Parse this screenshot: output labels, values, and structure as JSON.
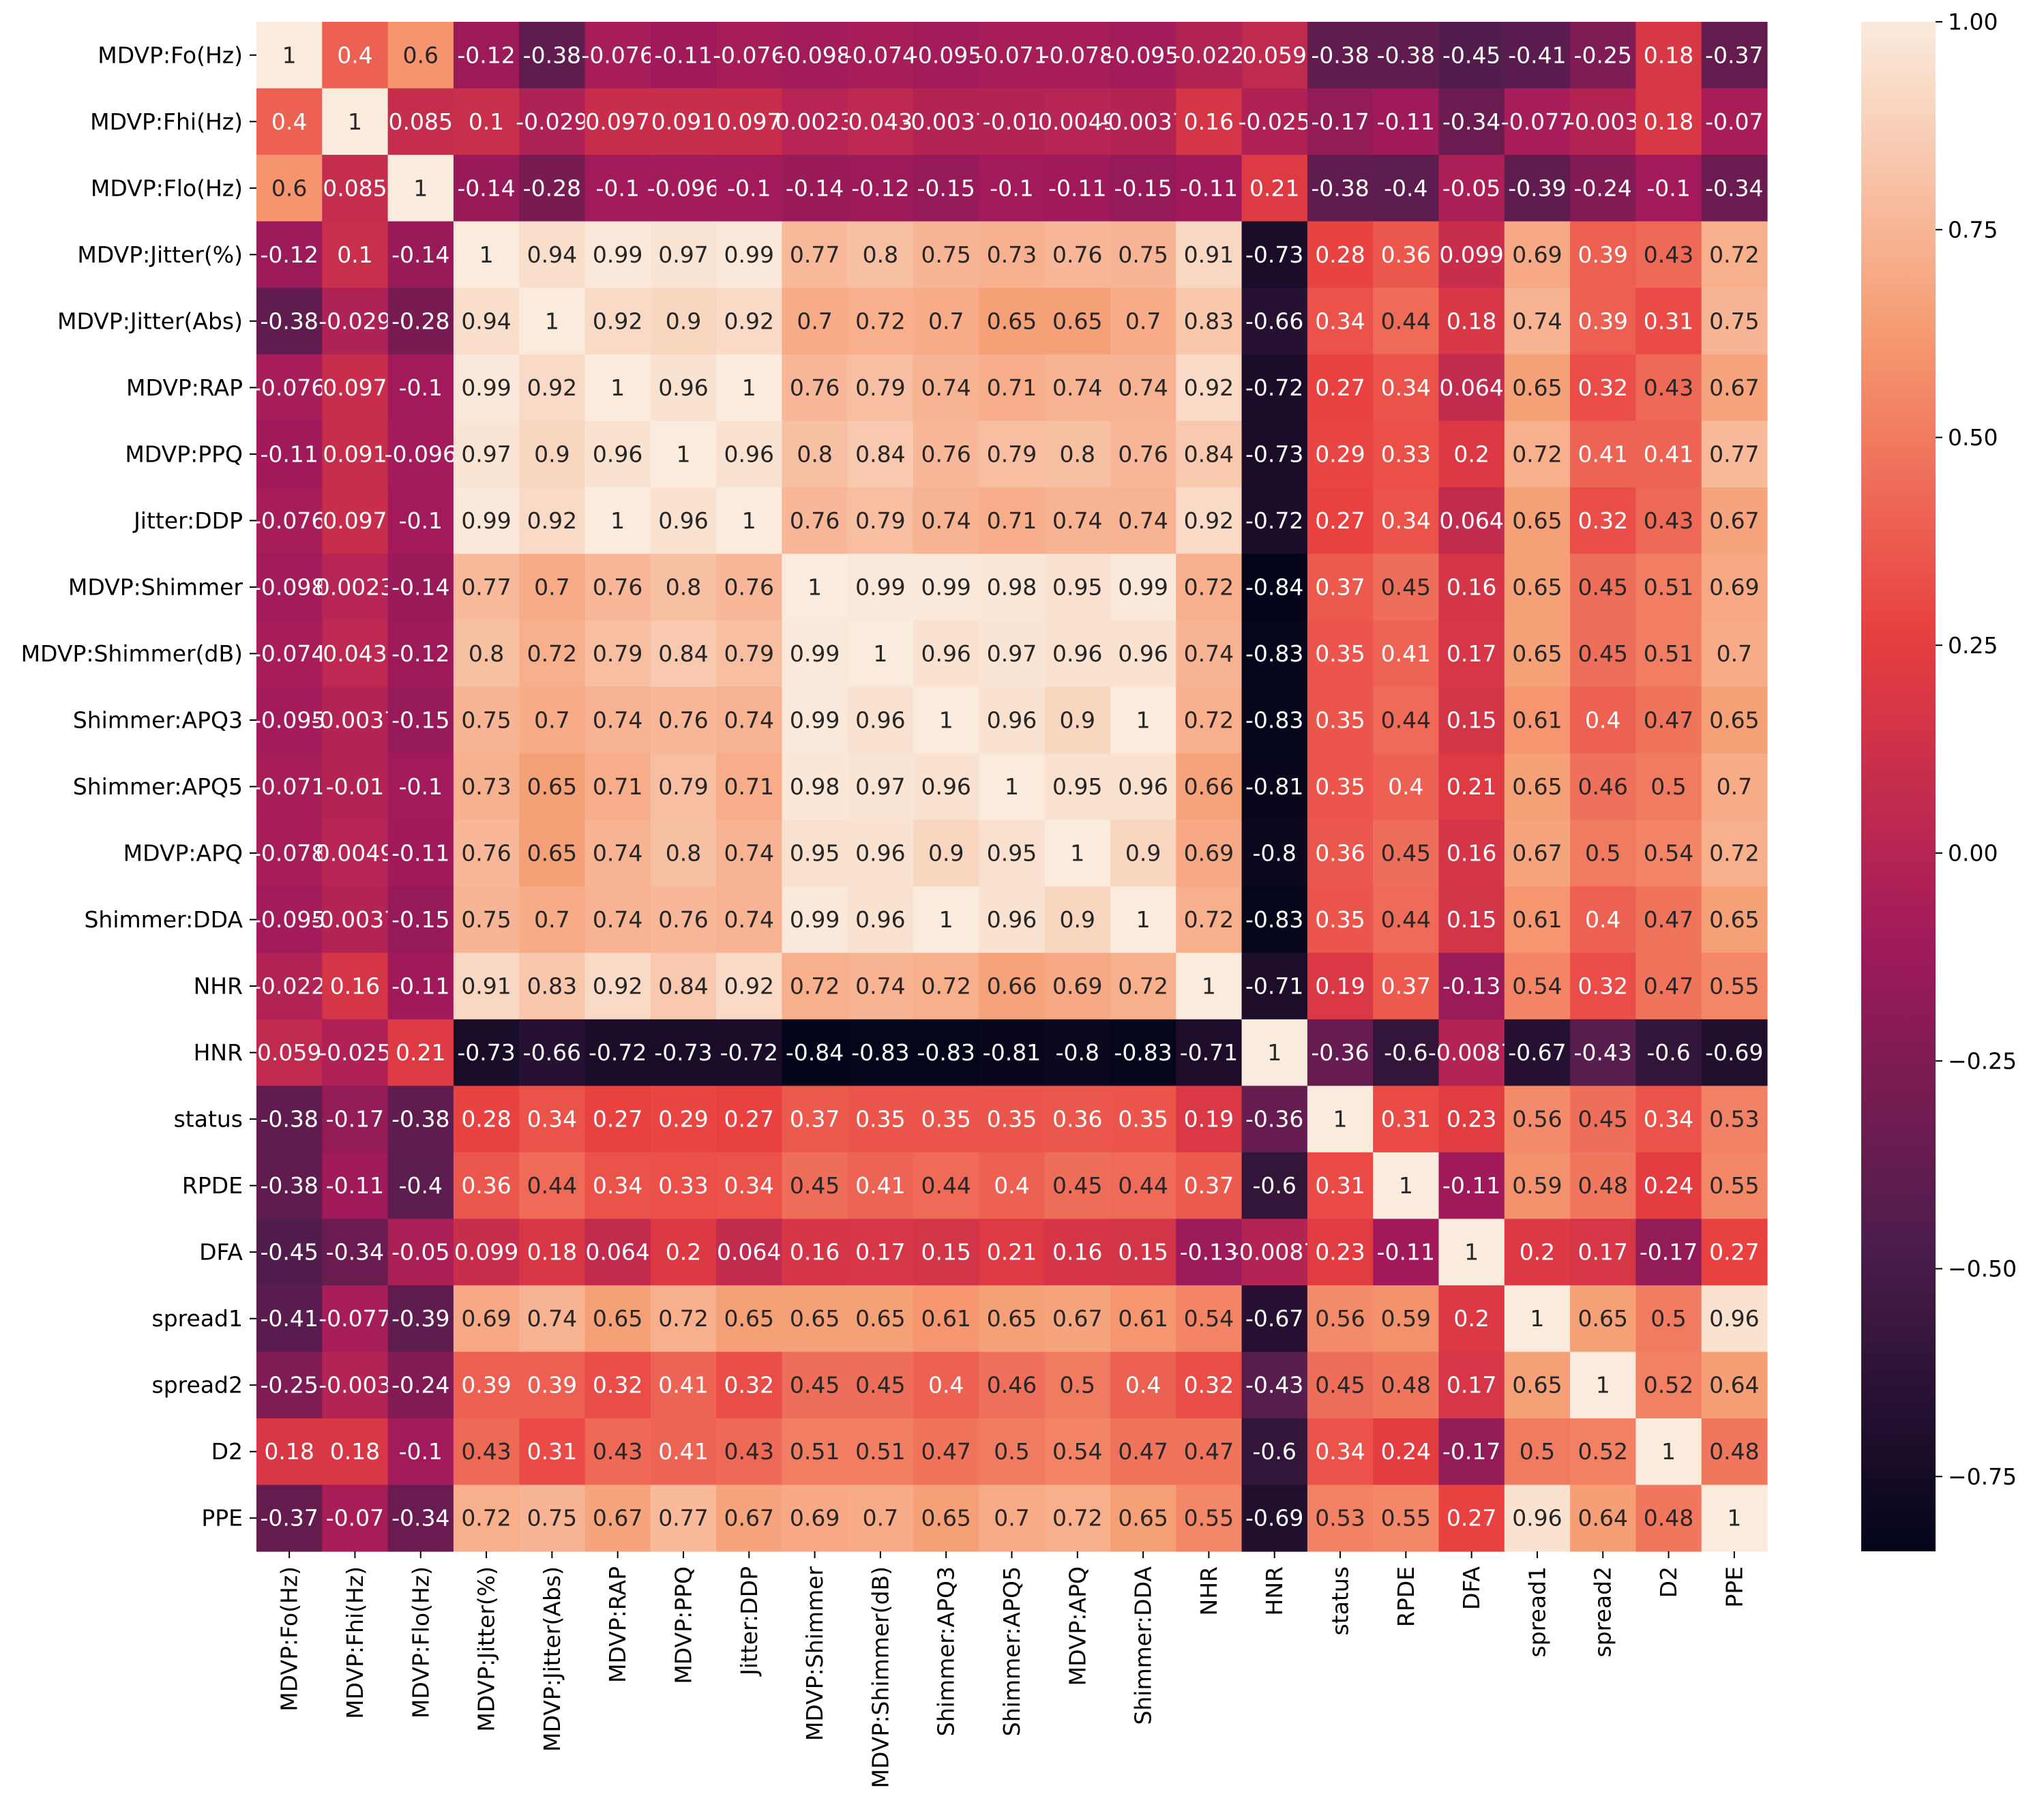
{
  "chart_data": {
    "type": "heatmap",
    "title": "",
    "xlabel": "",
    "ylabel": "",
    "labels": [
      "MDVP:Fo(Hz)",
      "MDVP:Fhi(Hz)",
      "MDVP:Flo(Hz)",
      "MDVP:Jitter(%)",
      "MDVP:Jitter(Abs)",
      "MDVP:RAP",
      "MDVP:PPQ",
      "Jitter:DDP",
      "MDVP:Shimmer",
      "MDVP:Shimmer(dB)",
      "Shimmer:APQ3",
      "Shimmer:APQ5",
      "MDVP:APQ",
      "Shimmer:DDA",
      "NHR",
      "HNR",
      "status",
      "RPDE",
      "DFA",
      "spread1",
      "spread2",
      "D2",
      "PPE"
    ],
    "matrix": [
      [
        "1",
        "0.4",
        "0.6",
        "-0.12",
        "-0.38",
        "-0.076",
        "-0.11",
        "-0.076",
        "-0.098",
        "-0.074",
        "-0.095",
        "-0.071",
        "-0.078",
        "-0.095",
        "-0.022",
        "0.059",
        "-0.38",
        "-0.38",
        "-0.45",
        "-0.41",
        "-0.25",
        "0.18",
        "-0.37"
      ],
      [
        "0.4",
        "1",
        "0.085",
        "0.1",
        "-0.029",
        "0.097",
        "0.091",
        "0.097",
        "0.0023",
        "0.043",
        "-0.0037",
        "-0.01",
        "0.0049",
        "-0.0037",
        "0.16",
        "-0.025",
        "-0.17",
        "-0.11",
        "-0.34",
        "-0.077",
        "-0.003",
        "0.18",
        "-0.07"
      ],
      [
        "0.6",
        "0.085",
        "1",
        "-0.14",
        "-0.28",
        "-0.1",
        "-0.096",
        "-0.1",
        "-0.14",
        "-0.12",
        "-0.15",
        "-0.1",
        "-0.11",
        "-0.15",
        "-0.11",
        "0.21",
        "-0.38",
        "-0.4",
        "-0.05",
        "-0.39",
        "-0.24",
        "-0.1",
        "-0.34"
      ],
      [
        "-0.12",
        "0.1",
        "-0.14",
        "1",
        "0.94",
        "0.99",
        "0.97",
        "0.99",
        "0.77",
        "0.8",
        "0.75",
        "0.73",
        "0.76",
        "0.75",
        "0.91",
        "-0.73",
        "0.28",
        "0.36",
        "0.099",
        "0.69",
        "0.39",
        "0.43",
        "0.72"
      ],
      [
        "-0.38",
        "-0.029",
        "-0.28",
        "0.94",
        "1",
        "0.92",
        "0.9",
        "0.92",
        "0.7",
        "0.72",
        "0.7",
        "0.65",
        "0.65",
        "0.7",
        "0.83",
        "-0.66",
        "0.34",
        "0.44",
        "0.18",
        "0.74",
        "0.39",
        "0.31",
        "0.75"
      ],
      [
        "-0.076",
        "0.097",
        "-0.1",
        "0.99",
        "0.92",
        "1",
        "0.96",
        "1",
        "0.76",
        "0.79",
        "0.74",
        "0.71",
        "0.74",
        "0.74",
        "0.92",
        "-0.72",
        "0.27",
        "0.34",
        "0.064",
        "0.65",
        "0.32",
        "0.43",
        "0.67"
      ],
      [
        "-0.11",
        "0.091",
        "-0.096",
        "0.97",
        "0.9",
        "0.96",
        "1",
        "0.96",
        "0.8",
        "0.84",
        "0.76",
        "0.79",
        "0.8",
        "0.76",
        "0.84",
        "-0.73",
        "0.29",
        "0.33",
        "0.2",
        "0.72",
        "0.41",
        "0.41",
        "0.77"
      ],
      [
        "-0.076",
        "0.097",
        "-0.1",
        "0.99",
        "0.92",
        "1",
        "0.96",
        "1",
        "0.76",
        "0.79",
        "0.74",
        "0.71",
        "0.74",
        "0.74",
        "0.92",
        "-0.72",
        "0.27",
        "0.34",
        "0.064",
        "0.65",
        "0.32",
        "0.43",
        "0.67"
      ],
      [
        "-0.098",
        "0.0023",
        "-0.14",
        "0.77",
        "0.7",
        "0.76",
        "0.8",
        "0.76",
        "1",
        "0.99",
        "0.99",
        "0.98",
        "0.95",
        "0.99",
        "0.72",
        "-0.84",
        "0.37",
        "0.45",
        "0.16",
        "0.65",
        "0.45",
        "0.51",
        "0.69"
      ],
      [
        "-0.074",
        "0.043",
        "-0.12",
        "0.8",
        "0.72",
        "0.79",
        "0.84",
        "0.79",
        "0.99",
        "1",
        "0.96",
        "0.97",
        "0.96",
        "0.96",
        "0.74",
        "-0.83",
        "0.35",
        "0.41",
        "0.17",
        "0.65",
        "0.45",
        "0.51",
        "0.7"
      ],
      [
        "-0.095",
        "-0.0037",
        "-0.15",
        "0.75",
        "0.7",
        "0.74",
        "0.76",
        "0.74",
        "0.99",
        "0.96",
        "1",
        "0.96",
        "0.9",
        "1",
        "0.72",
        "-0.83",
        "0.35",
        "0.44",
        "0.15",
        "0.61",
        "0.4",
        "0.47",
        "0.65"
      ],
      [
        "-0.071",
        "-0.01",
        "-0.1",
        "0.73",
        "0.65",
        "0.71",
        "0.79",
        "0.71",
        "0.98",
        "0.97",
        "0.96",
        "1",
        "0.95",
        "0.96",
        "0.66",
        "-0.81",
        "0.35",
        "0.4",
        "0.21",
        "0.65",
        "0.46",
        "0.5",
        "0.7"
      ],
      [
        "-0.078",
        "0.0049",
        "-0.11",
        "0.76",
        "0.65",
        "0.74",
        "0.8",
        "0.74",
        "0.95",
        "0.96",
        "0.9",
        "0.95",
        "1",
        "0.9",
        "0.69",
        "-0.8",
        "0.36",
        "0.45",
        "0.16",
        "0.67",
        "0.5",
        "0.54",
        "0.72"
      ],
      [
        "-0.095",
        "-0.0037",
        "-0.15",
        "0.75",
        "0.7",
        "0.74",
        "0.76",
        "0.74",
        "0.99",
        "0.96",
        "1",
        "0.96",
        "0.9",
        "1",
        "0.72",
        "-0.83",
        "0.35",
        "0.44",
        "0.15",
        "0.61",
        "0.4",
        "0.47",
        "0.65"
      ],
      [
        "-0.022",
        "0.16",
        "-0.11",
        "0.91",
        "0.83",
        "0.92",
        "0.84",
        "0.92",
        "0.72",
        "0.74",
        "0.72",
        "0.66",
        "0.69",
        "0.72",
        "1",
        "-0.71",
        "0.19",
        "0.37",
        "-0.13",
        "0.54",
        "0.32",
        "0.47",
        "0.55"
      ],
      [
        "0.059",
        "-0.025",
        "0.21",
        "-0.73",
        "-0.66",
        "-0.72",
        "-0.73",
        "-0.72",
        "-0.84",
        "-0.83",
        "-0.83",
        "-0.81",
        "-0.8",
        "-0.83",
        "-0.71",
        "1",
        "-0.36",
        "-0.6",
        "-0.0087",
        "-0.67",
        "-0.43",
        "-0.6",
        "-0.69"
      ],
      [
        "-0.38",
        "-0.17",
        "-0.38",
        "0.28",
        "0.34",
        "0.27",
        "0.29",
        "0.27",
        "0.37",
        "0.35",
        "0.35",
        "0.35",
        "0.36",
        "0.35",
        "0.19",
        "-0.36",
        "1",
        "0.31",
        "0.23",
        "0.56",
        "0.45",
        "0.34",
        "0.53"
      ],
      [
        "-0.38",
        "-0.11",
        "-0.4",
        "0.36",
        "0.44",
        "0.34",
        "0.33",
        "0.34",
        "0.45",
        "0.41",
        "0.44",
        "0.4",
        "0.45",
        "0.44",
        "0.37",
        "-0.6",
        "0.31",
        "1",
        "-0.11",
        "0.59",
        "0.48",
        "0.24",
        "0.55"
      ],
      [
        "-0.45",
        "-0.34",
        "-0.05",
        "0.099",
        "0.18",
        "0.064",
        "0.2",
        "0.064",
        "0.16",
        "0.17",
        "0.15",
        "0.21",
        "0.16",
        "0.15",
        "-0.13",
        "-0.0087",
        "0.23",
        "-0.11",
        "1",
        "0.2",
        "0.17",
        "-0.17",
        "0.27"
      ],
      [
        "-0.41",
        "-0.077",
        "-0.39",
        "0.69",
        "0.74",
        "0.65",
        "0.72",
        "0.65",
        "0.65",
        "0.65",
        "0.61",
        "0.65",
        "0.67",
        "0.61",
        "0.54",
        "-0.67",
        "0.56",
        "0.59",
        "0.2",
        "1",
        "0.65",
        "0.5",
        "0.96"
      ],
      [
        "-0.25",
        "-0.003",
        "-0.24",
        "0.39",
        "0.39",
        "0.32",
        "0.41",
        "0.32",
        "0.45",
        "0.45",
        "0.4",
        "0.46",
        "0.5",
        "0.4",
        "0.32",
        "-0.43",
        "0.45",
        "0.48",
        "0.17",
        "0.65",
        "1",
        "0.52",
        "0.64"
      ],
      [
        "0.18",
        "0.18",
        "-0.1",
        "0.43",
        "0.31",
        "0.43",
        "0.41",
        "0.43",
        "0.51",
        "0.51",
        "0.47",
        "0.5",
        "0.54",
        "0.47",
        "0.47",
        "-0.6",
        "0.34",
        "0.24",
        "-0.17",
        "0.5",
        "0.52",
        "1",
        "0.48"
      ],
      [
        "-0.37",
        "-0.07",
        "-0.34",
        "0.72",
        "0.75",
        "0.67",
        "0.77",
        "0.67",
        "0.69",
        "0.7",
        "0.65",
        "0.7",
        "0.72",
        "0.65",
        "0.55",
        "-0.69",
        "0.53",
        "0.55",
        "0.27",
        "0.96",
        "0.64",
        "0.48",
        "1"
      ]
    ],
    "colorbar": {
      "range": [
        -0.84,
        1.0
      ],
      "ticks": [
        "1.00",
        "0.75",
        "0.50",
        "0.25",
        "0.00",
        "−0.25",
        "−0.50",
        "−0.75"
      ],
      "colormap": "rocket",
      "stops": [
        "#03051a",
        "#4c1d4b",
        "#a11a5b",
        "#e83f3f",
        "#f69c73",
        "#faebdd"
      ]
    }
  }
}
